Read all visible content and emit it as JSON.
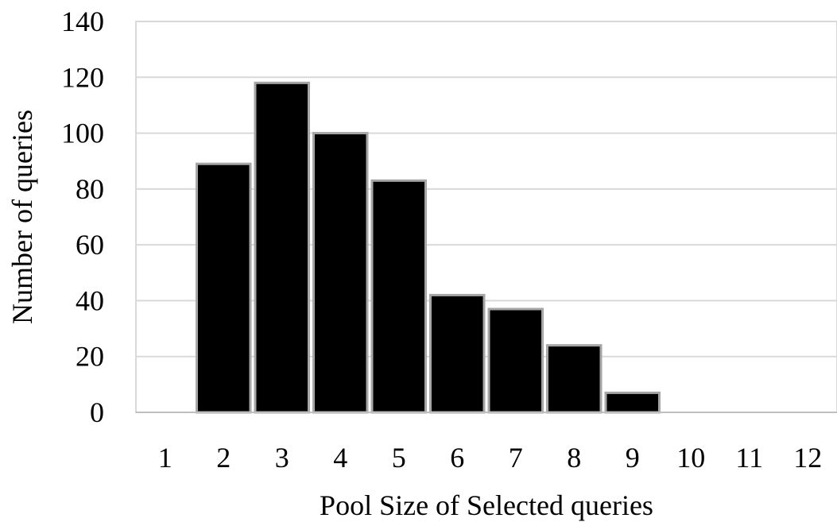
{
  "chart_data": {
    "type": "bar",
    "title": "",
    "xlabel": "Pool Size of Selected queries",
    "ylabel": "Number of queries",
    "categories": [
      "1",
      "2",
      "3",
      "4",
      "5",
      "6",
      "7",
      "8",
      "9",
      "10",
      "11",
      "12"
    ],
    "values": [
      0,
      89,
      118,
      100,
      83,
      42,
      37,
      24,
      7,
      0,
      0,
      0
    ],
    "ylim": [
      0,
      140
    ],
    "yticks": [
      0,
      20,
      40,
      60,
      80,
      100,
      120,
      140
    ],
    "grid": true,
    "legend": "none",
    "colors": {
      "bar_fill": "#000000",
      "bar_border": "#a6a6a6",
      "gridline": "#d9d9d9"
    }
  }
}
